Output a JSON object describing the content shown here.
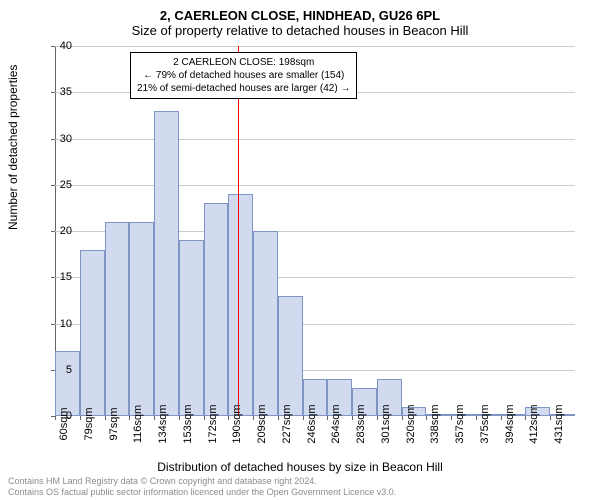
{
  "title_main": "2, CAERLEON CLOSE, HINDHEAD, GU26 6PL",
  "title_sub": "Size of property relative to detached houses in Beacon Hill",
  "ylabel": "Number of detached properties",
  "xlabel": "Distribution of detached houses by size in Beacon Hill",
  "histogram": {
    "type": "histogram",
    "categories": [
      "60sqm",
      "79sqm",
      "97sqm",
      "116sqm",
      "134sqm",
      "153sqm",
      "172sqm",
      "190sqm",
      "209sqm",
      "227sqm",
      "246sqm",
      "264sqm",
      "283sqm",
      "301sqm",
      "320sqm",
      "338sqm",
      "357sqm",
      "375sqm",
      "394sqm",
      "412sqm",
      "431sqm"
    ],
    "values": [
      7,
      18,
      21,
      21,
      33,
      19,
      23,
      24,
      20,
      13,
      4,
      4,
      3,
      4,
      1,
      0,
      0,
      0,
      0,
      1,
      0
    ],
    "bar_color": "#d1daee",
    "bar_border_color": "#7f95c4",
    "ylim": [
      0,
      40
    ],
    "ytick_step": 5,
    "background_color": "#ffffff",
    "grid_color": "#cccccc"
  },
  "marker": {
    "position_index": 7.4,
    "color": "#ff0000",
    "annotation_lines": [
      "← 79% of detached houses are smaller (154)",
      "21% of semi-detached houses are larger (42) →"
    ],
    "annotation_title": "2 CAERLEON CLOSE: 198sqm"
  },
  "footer_line1": "Contains HM Land Registry data © Crown copyright and database right 2024.",
  "footer_line2": "Contains OS factual public sector information licenced under the Open Government Licence v3.0.",
  "styling": {
    "title_fontsize": 13,
    "label_fontsize": 12,
    "tick_fontsize": 11,
    "annotation_fontsize": 10,
    "footer_fontsize": 9,
    "footer_color": "#8c8c8c"
  }
}
